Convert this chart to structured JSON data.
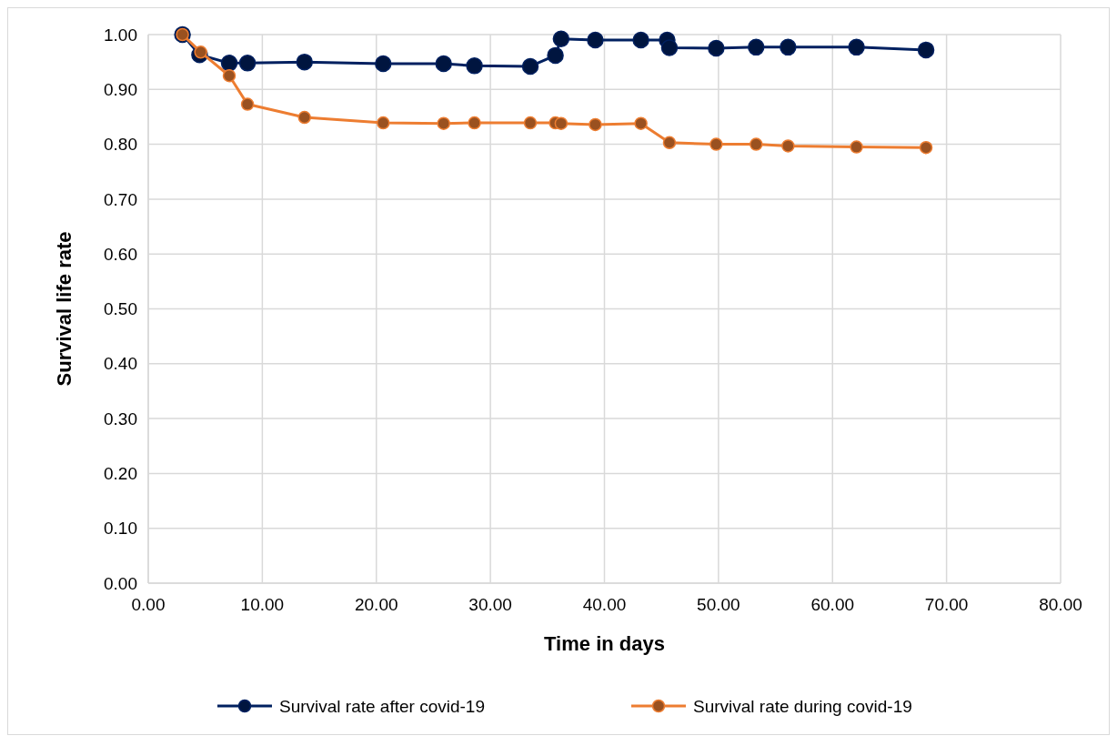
{
  "chart_data": {
    "type": "line",
    "xlabel": "Time in days",
    "ylabel": "Survival life rate",
    "xlim": [
      0,
      80
    ],
    "xticks": [
      {
        "value": 0,
        "label": "0.00"
      },
      {
        "value": 10,
        "label": "10.00"
      },
      {
        "value": 20,
        "label": "20.00"
      },
      {
        "value": 30,
        "label": "30.00"
      },
      {
        "value": 40,
        "label": "40.00"
      },
      {
        "value": 50,
        "label": "50.00"
      },
      {
        "value": 60,
        "label": "60.00"
      },
      {
        "value": 70,
        "label": "70.00"
      },
      {
        "value": 80,
        "label": "80.00"
      }
    ],
    "ylim": [
      0,
      1
    ],
    "yticks": [
      {
        "value": 0,
        "label": "0.00"
      },
      {
        "value": 0.1,
        "label": "0.10"
      },
      {
        "value": 0.2,
        "label": "0.20"
      },
      {
        "value": 0.3,
        "label": "0.30"
      },
      {
        "value": 0.4,
        "label": "0.40"
      },
      {
        "value": 0.5,
        "label": "0.50"
      },
      {
        "value": 0.6,
        "label": "0.60"
      },
      {
        "value": 0.7,
        "label": "0.70"
      },
      {
        "value": 0.8,
        "label": "0.80"
      },
      {
        "value": 0.9,
        "label": "0.90"
      },
      {
        "value": 1,
        "label": "1.00"
      }
    ],
    "grid": true,
    "legend": "bottom",
    "marker": "circle",
    "line_style": "solid",
    "series": [
      {
        "name": "Survival rate after covid-19",
        "color": "#002060",
        "x": [
          3.0,
          4.5,
          7.1,
          8.7,
          13.7,
          20.6,
          25.9,
          28.6,
          33.5,
          35.7,
          36.2,
          39.2,
          43.2,
          45.5,
          45.7,
          49.8,
          53.3,
          56.1,
          62.1,
          68.2
        ],
        "values": [
          1.0,
          0.963,
          0.948,
          0.948,
          0.95,
          0.947,
          0.947,
          0.943,
          0.942,
          0.962,
          0.992,
          0.99,
          0.99,
          0.99,
          0.976,
          0.975,
          0.977,
          0.977,
          0.977,
          0.972
        ]
      },
      {
        "name": "Survival rate during covid-19",
        "color": "#ed7d31",
        "x": [
          3.0,
          4.6,
          7.1,
          8.7,
          13.7,
          20.6,
          25.9,
          28.6,
          33.5,
          35.7,
          36.2,
          39.2,
          43.2,
          45.7,
          49.8,
          53.3,
          56.1,
          62.1,
          68.2
        ],
        "values": [
          1.0,
          0.968,
          0.925,
          0.873,
          0.849,
          0.839,
          0.838,
          0.839,
          0.839,
          0.839,
          0.838,
          0.836,
          0.838,
          0.803,
          0.8,
          0.8,
          0.797,
          0.795,
          0.794
        ]
      }
    ]
  }
}
